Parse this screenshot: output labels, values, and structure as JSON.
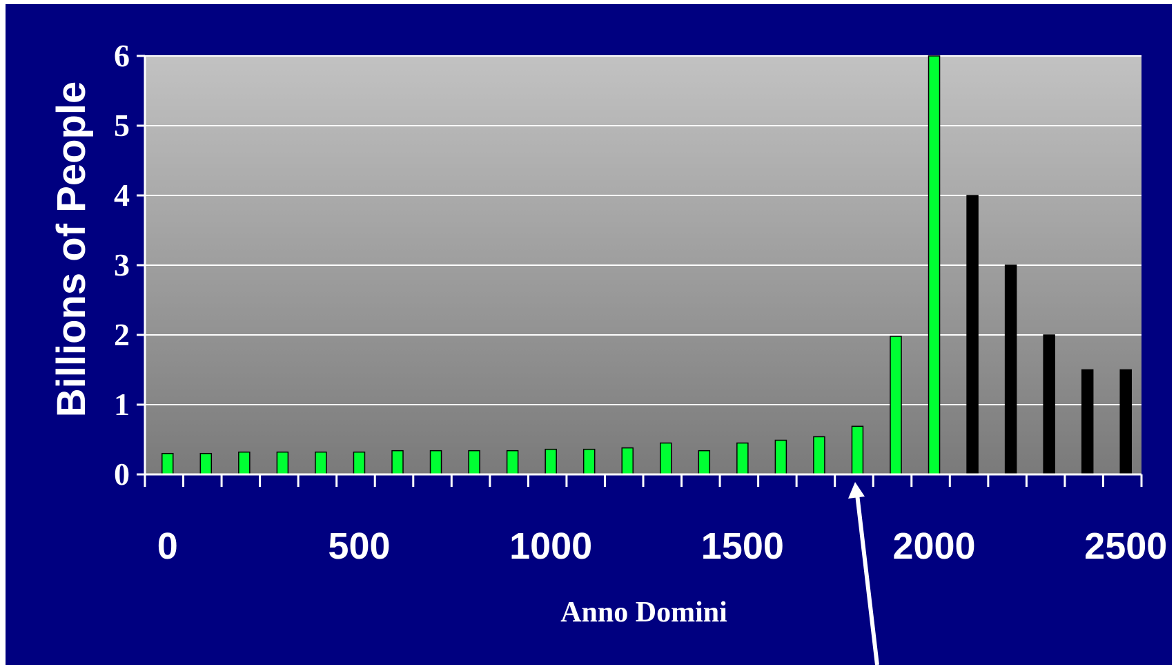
{
  "chart_data": {
    "type": "bar",
    "xlabel": "Anno Domini",
    "ylabel": "Billions of People",
    "ylim": [
      0,
      6
    ],
    "xlim": [
      -50,
      2550
    ],
    "yticks": [
      0,
      1,
      2,
      3,
      4,
      5,
      6
    ],
    "xticks": [
      0,
      500,
      1000,
      1500,
      2000,
      2500
    ],
    "grid": true,
    "colors": {
      "background": "#000080",
      "historical": "#00ff33",
      "projected": "#000000",
      "gridline": "#ffffff",
      "arrow": "#ffffff"
    },
    "arrow_target_year": 1800,
    "series": [
      {
        "x": [
          0,
          100,
          200,
          300,
          400,
          500,
          600,
          700,
          800,
          900,
          1000,
          1100,
          1200,
          1300,
          1400,
          1500,
          1600,
          1700,
          1800,
          1900,
          2000
        ],
        "values": [
          0.3,
          0.3,
          0.32,
          0.32,
          0.32,
          0.32,
          0.34,
          0.34,
          0.34,
          0.34,
          0.36,
          0.36,
          0.38,
          0.45,
          0.34,
          0.45,
          0.49,
          0.54,
          0.69,
          1.98,
          6.0
        ],
        "color": "#00ff33"
      },
      {
        "x": [
          2100,
          2200,
          2300,
          2400,
          2500
        ],
        "values": [
          4.0,
          3.0,
          2.0,
          1.5,
          1.5
        ],
        "color": "#000000"
      }
    ]
  }
}
